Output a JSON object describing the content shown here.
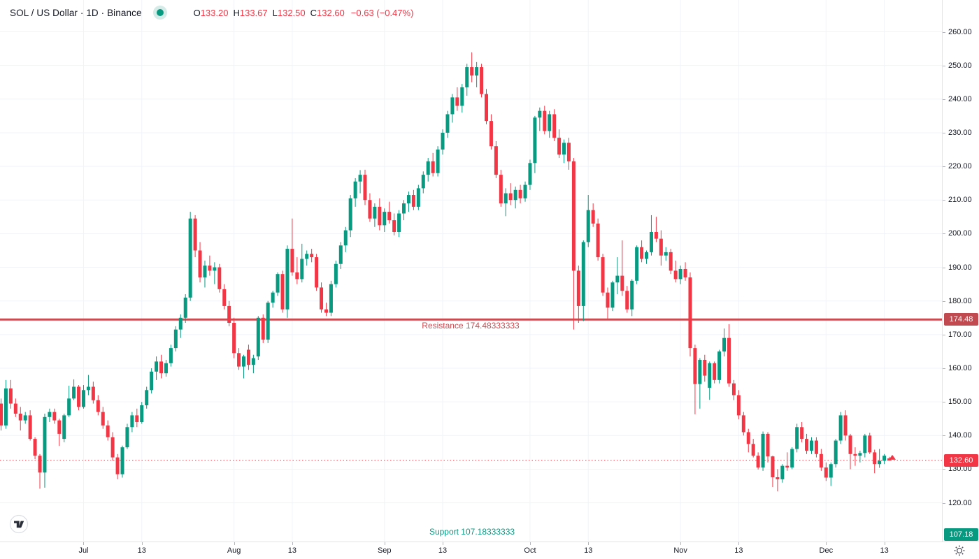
{
  "header": {
    "title": "SOL / US Dollar · 1D · Binance",
    "ohlc": [
      {
        "label": "O",
        "value": "133.20"
      },
      {
        "label": "H",
        "value": "133.67"
      },
      {
        "label": "L",
        "value": "132.50"
      },
      {
        "label": "C",
        "value": "132.60"
      }
    ],
    "change": "−0.63 (−0.47%)"
  },
  "annotations": {
    "resistance": {
      "text": "Resistance 174.48333333",
      "price": 174.48333333,
      "axis_label": "174.48"
    },
    "support": {
      "text": "Support 107.18333333",
      "price": 107.18333333,
      "axis_label": "107.18"
    },
    "last_price": {
      "price": 132.6,
      "axis_label": "132.60"
    }
  },
  "colors": {
    "up": "#089981",
    "down": "#f23645",
    "grid": "#f0f3fa",
    "axis_text": "#131722",
    "axis_border": "#e0e3eb",
    "tick_dash": "#b2b5be",
    "resistance_line": "#cc4b51",
    "resistance_badge": "#c04a50",
    "support": "#089981",
    "last_price_line": "#f23645",
    "status_dot": "#089981",
    "gear_icon": "#50535e",
    "logo_glyph": "#2a2e39"
  },
  "price_axis": {
    "tick_values": [
      260,
      250,
      240,
      230,
      220,
      210,
      200,
      190,
      180,
      170,
      160,
      150,
      140,
      130,
      120
    ],
    "tick_labels": [
      "260.00",
      "250.00",
      "240.00",
      "230.00",
      "220.00",
      "210.00",
      "200.00",
      "190.00",
      "180.00",
      "170.00",
      "160.00",
      "150.00",
      "140.00",
      "130.00",
      "120.00"
    ]
  },
  "time_axis": {
    "ticks": [
      {
        "label": "Jul",
        "index": 17
      },
      {
        "label": "13",
        "index": 29
      },
      {
        "label": "Aug",
        "index": 48
      },
      {
        "label": "13",
        "index": 60
      },
      {
        "label": "Sep",
        "index": 79
      },
      {
        "label": "13",
        "index": 91
      },
      {
        "label": "Oct",
        "index": 109
      },
      {
        "label": "13",
        "index": 121
      },
      {
        "label": "Nov",
        "index": 140
      },
      {
        "label": "13",
        "index": 152
      },
      {
        "label": "Dec",
        "index": 170
      },
      {
        "label": "13",
        "index": 182
      }
    ]
  },
  "chart_data": {
    "type": "candlestick",
    "symbol": "SOL / US Dollar",
    "interval": "1D",
    "exchange": "Binance",
    "ylim": [
      110,
      262
    ],
    "series_format": [
      "open",
      "high",
      "low",
      "close"
    ],
    "candles": [
      [
        149.5,
        151,
        141.5,
        143
      ],
      [
        143,
        156.5,
        142,
        154
      ],
      [
        154,
        156.5,
        148,
        149.5
      ],
      [
        149.5,
        151,
        145.5,
        146.5
      ],
      [
        146.5,
        148.5,
        141.5,
        144.5
      ],
      [
        144.5,
        147,
        143.5,
        146
      ],
      [
        146,
        147.5,
        138.5,
        139
      ],
      [
        139,
        139.5,
        133,
        134
      ],
      [
        134,
        134.5,
        124.2,
        129
      ],
      [
        129,
        146.5,
        124.5,
        145.5
      ],
      [
        145.5,
        148,
        144,
        147
      ],
      [
        147,
        148,
        143.5,
        144.5
      ],
      [
        144.5,
        145,
        136.9,
        140.5
      ],
      [
        139,
        146.5,
        138,
        146
      ],
      [
        146,
        154.8,
        145.5,
        151
      ],
      [
        151,
        156.7,
        150.5,
        154.5
      ],
      [
        154.5,
        155,
        147.5,
        148.5
      ],
      [
        148.5,
        155,
        148,
        153.5
      ],
      [
        153.5,
        158,
        152,
        154.5
      ],
      [
        154.5,
        156,
        149.5,
        150.5
      ],
      [
        150.5,
        152,
        146,
        147
      ],
      [
        147,
        148.5,
        142,
        143
      ],
      [
        143,
        144.5,
        138.5,
        139.5
      ],
      [
        139.5,
        141,
        132.5,
        133.5
      ],
      [
        133.5,
        134.5,
        127,
        128.5
      ],
      [
        128.5,
        137,
        127.5,
        136.5
      ],
      [
        136.5,
        143.5,
        136,
        142.5
      ],
      [
        142.5,
        147,
        141,
        146
      ],
      [
        146,
        148,
        142.5,
        144
      ],
      [
        144,
        150,
        143.5,
        149
      ],
      [
        149,
        154.5,
        148,
        153.5
      ],
      [
        153.5,
        160,
        152.5,
        159
      ],
      [
        159,
        163.5,
        156.5,
        162
      ],
      [
        162,
        164,
        157,
        158.5
      ],
      [
        158.5,
        162.5,
        157.5,
        161.5
      ],
      [
        161.5,
        167,
        160.5,
        166
      ],
      [
        166,
        172.5,
        165,
        171.5
      ],
      [
        171.5,
        176,
        169,
        175
      ],
      [
        175,
        182,
        173.5,
        181
      ],
      [
        181,
        206.5,
        180,
        204.5
      ],
      [
        204.5,
        205.5,
        193,
        195
      ],
      [
        195,
        197.5,
        185.5,
        187
      ],
      [
        187,
        192,
        184,
        190.5
      ],
      [
        190.5,
        193.5,
        187.5,
        189
      ],
      [
        189,
        191.5,
        185,
        190
      ],
      [
        190,
        191,
        182.5,
        183.5
      ],
      [
        183.5,
        185,
        177.5,
        178.5
      ],
      [
        178.5,
        180,
        172.5,
        173.5
      ],
      [
        173.5,
        175,
        163,
        164.5
      ],
      [
        164.5,
        166,
        159.5,
        160.5
      ],
      [
        160.5,
        164,
        157,
        163.5
      ],
      [
        165.5,
        167,
        159.5,
        161
      ],
      [
        161,
        164,
        158.5,
        163
      ],
      [
        163.5,
        175.5,
        162.5,
        175
      ],
      [
        175,
        176,
        167.5,
        168.5
      ],
      [
        168.5,
        180,
        167.5,
        179.5
      ],
      [
        179.5,
        183,
        178,
        182.5
      ],
      [
        182.5,
        188.5,
        181.5,
        188
      ],
      [
        188,
        189,
        176.5,
        177.5
      ],
      [
        177.5,
        196.5,
        175,
        195.5
      ],
      [
        195.5,
        204.5,
        187.5,
        188.5
      ],
      [
        188.5,
        193,
        185,
        186.5
      ],
      [
        186.5,
        197,
        185.5,
        192.5
      ],
      [
        192.5,
        195,
        190.5,
        194
      ],
      [
        194,
        195.5,
        191.5,
        193
      ],
      [
        193,
        194,
        183,
        184
      ],
      [
        184,
        185.5,
        176.5,
        177.5
      ],
      [
        177.5,
        179.5,
        175.5,
        176.5
      ],
      [
        176.5,
        186,
        175.5,
        185
      ],
      [
        185,
        192,
        184,
        191
      ],
      [
        191,
        197.5,
        189.5,
        196.5
      ],
      [
        196.5,
        202,
        194.5,
        201
      ],
      [
        201,
        211.5,
        199,
        210.5
      ],
      [
        210.5,
        216.5,
        208,
        215.5
      ],
      [
        215.5,
        218.9,
        212,
        217.5
      ],
      [
        217.5,
        219,
        208.5,
        210
      ],
      [
        210,
        212,
        203.5,
        204.5
      ],
      [
        204.5,
        209,
        202,
        208
      ],
      [
        208,
        210.5,
        201,
        202.5
      ],
      [
        202.5,
        207.5,
        200.5,
        206.5
      ],
      [
        206.5,
        209.5,
        203,
        204
      ],
      [
        204,
        206,
        199.5,
        200.5
      ],
      [
        200.5,
        207,
        199,
        206
      ],
      [
        206,
        210,
        204,
        209
      ],
      [
        209,
        212.5,
        206.5,
        211.5
      ],
      [
        211.5,
        213,
        207,
        208
      ],
      [
        208,
        214.5,
        207,
        213.5
      ],
      [
        213.5,
        218.5,
        212,
        217.5
      ],
      [
        217.5,
        222.5,
        215.5,
        221.5
      ],
      [
        221.5,
        224,
        217,
        218
      ],
      [
        218,
        226,
        217,
        225
      ],
      [
        225,
        231,
        223.5,
        230
      ],
      [
        230,
        236.5,
        228.5,
        235.5
      ],
      [
        235.5,
        241.5,
        233,
        240.5
      ],
      [
        240.5,
        243.5,
        236.5,
        238
      ],
      [
        238,
        244.5,
        236,
        243.5
      ],
      [
        243.5,
        250.5,
        241,
        249.5
      ],
      [
        249.5,
        253.9,
        245,
        247
      ],
      [
        247,
        251,
        243.5,
        249.5
      ],
      [
        249.5,
        250.5,
        240.5,
        241.5
      ],
      [
        241.5,
        243,
        232.5,
        233.5
      ],
      [
        233.5,
        235.5,
        225,
        226
      ],
      [
        226,
        227.5,
        216.5,
        217.5
      ],
      [
        217.5,
        219,
        208,
        209
      ],
      [
        209,
        213.5,
        205.2,
        212
      ],
      [
        212,
        215,
        208.5,
        210
      ],
      [
        210,
        214,
        207.5,
        213
      ],
      [
        213,
        214.5,
        209,
        210.5
      ],
      [
        210.5,
        215.5,
        209.5,
        214.5
      ],
      [
        214.5,
        222,
        213,
        221
      ],
      [
        221,
        235,
        218,
        234.5
      ],
      [
        234.5,
        237.5,
        230.5,
        236.5
      ],
      [
        236.5,
        238,
        229.5,
        230.5
      ],
      [
        230.5,
        236.5,
        228.5,
        235.5
      ],
      [
        235.5,
        237,
        227.5,
        228.5
      ],
      [
        228.5,
        231,
        222.5,
        223.5
      ],
      [
        223.5,
        228,
        221,
        227
      ],
      [
        227,
        228.5,
        219,
        221.5
      ],
      [
        221.5,
        222.5,
        171.5,
        189
      ],
      [
        189,
        190.5,
        173.5,
        178.5
      ],
      [
        178.5,
        198,
        174,
        197.5
      ],
      [
        197.5,
        211.5,
        196,
        207
      ],
      [
        207,
        209,
        202,
        203
      ],
      [
        203,
        204.5,
        192,
        193
      ],
      [
        193,
        194,
        181.5,
        182.5
      ],
      [
        182.5,
        184,
        174.7,
        178
      ],
      [
        178,
        186,
        177,
        185.5
      ],
      [
        185.5,
        193,
        182,
        187.5
      ],
      [
        187.5,
        198,
        181.5,
        183
      ],
      [
        183,
        184.5,
        176.5,
        177.5
      ],
      [
        177.5,
        186.5,
        175.5,
        186
      ],
      [
        186,
        196.5,
        185,
        196
      ],
      [
        196,
        198,
        191.5,
        192.5
      ],
      [
        192.5,
        195,
        191,
        194.5
      ],
      [
        194.5,
        205.5,
        193.5,
        200.5
      ],
      [
        200.5,
        205,
        197.5,
        198.5
      ],
      [
        198.5,
        201,
        190.5,
        193.5
      ],
      [
        193.5,
        196,
        192,
        194.5
      ],
      [
        194.5,
        195.5,
        188,
        189
      ],
      [
        189,
        192,
        185.5,
        186.5
      ],
      [
        186.5,
        190.5,
        185,
        189.5
      ],
      [
        189.5,
        191.5,
        186,
        187
      ],
      [
        187,
        188.5,
        163.5,
        166
      ],
      [
        166,
        167,
        146.3,
        155.3
      ],
      [
        155.3,
        163,
        148,
        162.5
      ],
      [
        162.5,
        164,
        156,
        157.8
      ],
      [
        154.2,
        162,
        150.6,
        161.5
      ],
      [
        161.5,
        162,
        155.5,
        156.5
      ],
      [
        156.5,
        165.5,
        155.5,
        165
      ],
      [
        165,
        171.8,
        163.5,
        169
      ],
      [
        169,
        173.1,
        154.5,
        155.5
      ],
      [
        155.5,
        156.5,
        150.5,
        152
      ],
      [
        152,
        153.5,
        144.8,
        146
      ],
      [
        146,
        147,
        140,
        141
      ],
      [
        141,
        142,
        135,
        137.5
      ],
      [
        137.5,
        139,
        133.5,
        134
      ],
      [
        134,
        135,
        129.9,
        130.5
      ],
      [
        130.5,
        141.2,
        129.5,
        140.5
      ],
      [
        140.5,
        141,
        132,
        133.8
      ],
      [
        133.8,
        134,
        124.7,
        127.6
      ],
      [
        127.6,
        130,
        123.4,
        127
      ],
      [
        127,
        131.5,
        126,
        131
      ],
      [
        131,
        135,
        129.5,
        130.5
      ],
      [
        130.5,
        136.5,
        130,
        136
      ],
      [
        136,
        143.5,
        135,
        142.5
      ],
      [
        142.5,
        144,
        138,
        139
      ],
      [
        139,
        140.5,
        134.5,
        135.5
      ],
      [
        135.5,
        139.5,
        134.5,
        138.5
      ],
      [
        138.5,
        139.5,
        133.5,
        134.5
      ],
      [
        134.5,
        136,
        129.5,
        130.5
      ],
      [
        130.5,
        132,
        126.5,
        127.5
      ],
      [
        127.5,
        132,
        125,
        131.5
      ],
      [
        131.5,
        139,
        130.5,
        138.5
      ],
      [
        138.5,
        147,
        137.5,
        146
      ],
      [
        146,
        147.5,
        138.5,
        140
      ],
      [
        140,
        140.5,
        130,
        134.5
      ],
      [
        134.5,
        136.5,
        131,
        134
      ],
      [
        134,
        135.5,
        132,
        134.8
      ],
      [
        134.8,
        140.5,
        133.5,
        140
      ],
      [
        140,
        140.8,
        134.5,
        135
      ],
      [
        135,
        135.8,
        128.8,
        131.5
      ],
      [
        131.5,
        136,
        130.4,
        132.5
      ],
      [
        132.5,
        134.5,
        131.5,
        134
      ],
      [
        133.2,
        133.67,
        132.5,
        132.6
      ]
    ]
  }
}
